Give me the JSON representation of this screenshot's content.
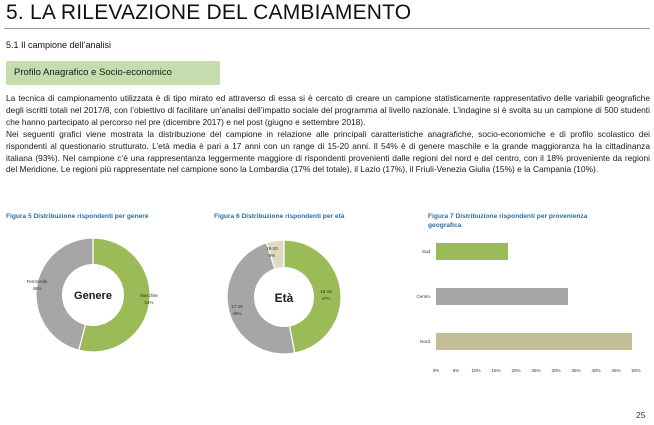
{
  "title": "5. LA RILEVAZIONE DEL CAMBIAMENTO",
  "subsection": "5.1 Il campione dell’analisi",
  "section_box": "Profilo Anagrafico e Socio-economico",
  "paragraphs": [
    "La tecnica di campionamento utilizzata è di tipo mirato ed attraverso di essa si è cercato di creare un campione statisticamente rappresentativo delle variabili geografiche degli iscritti totali nel 2017/8, con l’obiettivo di facilitare un’analisi dell’impatto sociale del programma al livello nazionale. L’indagine si è svolta su un campione di 500 studenti che hanno partecipato al percorso nel pre (dicembre 2017) e nel post (giugno e settembre 2018).",
    "Nei seguenti grafici viene mostrata la distribuzione del campione in relazione alle principali caratteristiche anagrafiche, socio-economiche e di profilo scolastico dei rispondenti al questionario strutturato. L’età media è pari a 17 anni con un range di 15-20 anni. Il 54% è di genere maschile e la grande maggioranza ha la cittadinanza italiana (93%). Nel campione c’è una rappresentanza leggermente maggiore di rispondenti provenienti dalle regioni del nord e del centro, con il 18% proveniente da regioni del Meridione. Le regioni più rappresentate nel campione sono la Lombardia (17% del totale), il Lazio (17%), il Friuli-Venezia Giulia (15%) e la Campania (10%)."
  ],
  "page_number": "25",
  "colors": {
    "green": "#9bbb59",
    "gray": "#a6a6a6",
    "tan": "#c4bd97",
    "caption": "#2e6da4"
  },
  "chart_data": [
    {
      "type": "pie",
      "title": "Figura 5 Distribuzione rispondenti per genere",
      "center_label": "Genere",
      "slices": [
        {
          "label": "Maschile",
          "value": 54,
          "value_label": "54%",
          "color": "#9bbb59"
        },
        {
          "label": "Femminile",
          "value": 46,
          "value_label": "46%",
          "color": "#a6a6a6"
        }
      ]
    },
    {
      "type": "pie",
      "title": "Figura 6 Distribuzione rispondenti per età",
      "center_label": "Età",
      "slices": [
        {
          "label": "15-16",
          "value": 47,
          "value_label": "47%",
          "color": "#9bbb59"
        },
        {
          "label": "17-18",
          "value": 48,
          "value_label": "48%",
          "color": "#a6a6a6"
        },
        {
          "label": "19-20",
          "value": 5,
          "value_label": "5%",
          "color": "#ddd9c3"
        }
      ]
    },
    {
      "type": "bar",
      "orientation": "horizontal",
      "title_line1": "Figura 7   Distribuzione rispondenti per provenienza",
      "title_line2": "geografica",
      "categories": [
        "Sud",
        "Centro",
        "Nord"
      ],
      "values": [
        18,
        33,
        49
      ],
      "bar_colors": [
        "#9bbb59",
        "#a6a6a6",
        "#c4bd97"
      ],
      "xlim": [
        0,
        50
      ],
      "ticks": [
        "0%",
        "5%",
        "10%",
        "15%",
        "20%",
        "25%",
        "30%",
        "35%",
        "40%",
        "45%",
        "50%"
      ]
    }
  ]
}
